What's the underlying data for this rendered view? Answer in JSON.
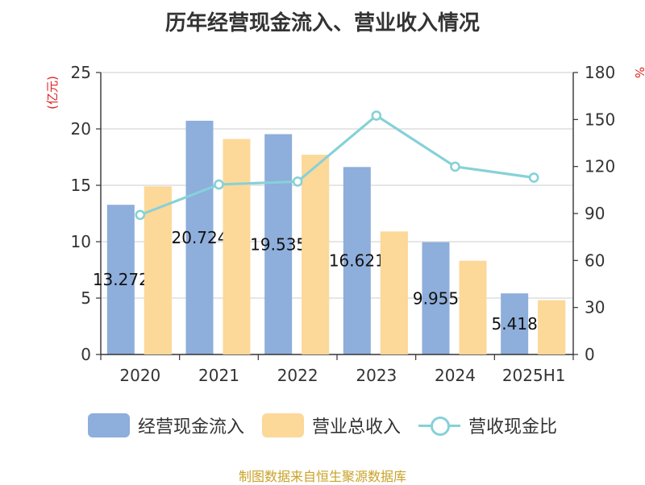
{
  "title": "历年经营现金流入、营业收入情况",
  "source": "制图数据来自恒生聚源数据库",
  "colors": {
    "cash_inflow": "#8eaedb",
    "revenue": "#fcd899",
    "ratio": "#86d1d8",
    "unit": "#e02020",
    "source": "#c9a227"
  },
  "chart_data": {
    "type": "bar",
    "categories": [
      "2020",
      "2021",
      "2022",
      "2023",
      "2024",
      "2025H1"
    ],
    "left_axis": {
      "unit": "(亿元)",
      "ylim": [
        0,
        25
      ],
      "ticks": [
        0,
        5,
        10,
        15,
        20,
        25
      ]
    },
    "right_axis": {
      "unit": "%",
      "ylim": [
        0,
        180
      ],
      "ticks": [
        0,
        30,
        60,
        90,
        120,
        150,
        180
      ]
    },
    "series": [
      {
        "name": "经营现金流入",
        "type": "bar",
        "axis": "left",
        "values": [
          13.272,
          20.724,
          19.535,
          16.621,
          9.955,
          5.418
        ],
        "labels": [
          "13.272",
          "20.724",
          "19.535",
          "16.621",
          "9.955",
          "5.418"
        ]
      },
      {
        "name": "营业总收入",
        "type": "bar",
        "axis": "left",
        "values": [
          14.9,
          19.1,
          17.7,
          10.9,
          8.3,
          4.8
        ]
      },
      {
        "name": "营收现金比",
        "type": "line",
        "axis": "right",
        "values": [
          89.1,
          108.5,
          110.4,
          152.5,
          119.9,
          112.9
        ]
      }
    ],
    "legend_position": "bottom-center",
    "grid": true
  }
}
